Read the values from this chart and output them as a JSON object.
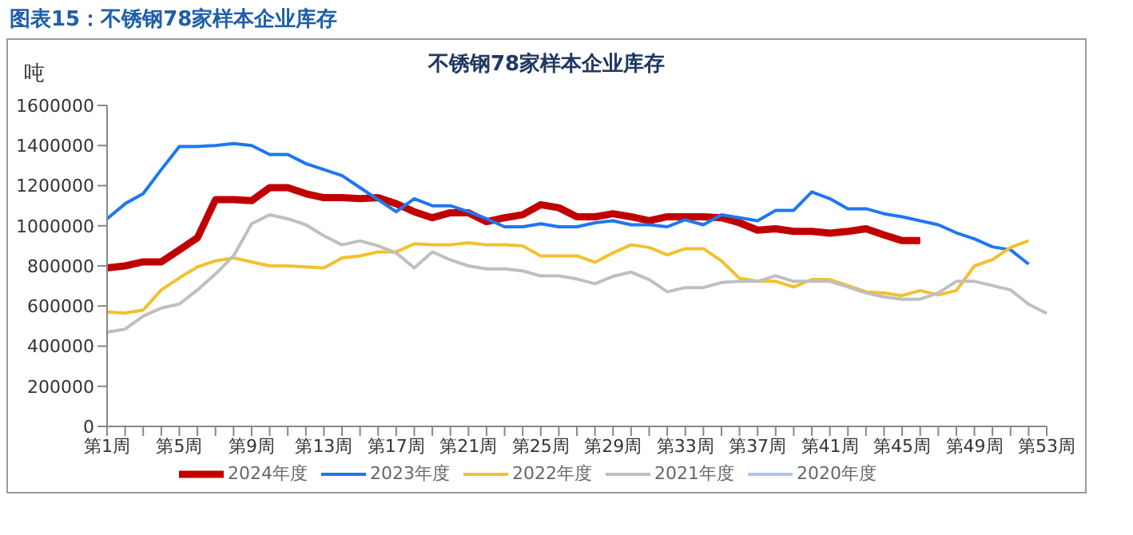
{
  "chart_data": {
    "type": "line",
    "title": "图表15：不锈钢78家样本企业库存",
    "subtitle": "不锈钢78家样本企业库存",
    "ylabel": "吨",
    "categories": [
      "第1周",
      null,
      null,
      null,
      "第5周",
      null,
      null,
      null,
      "第9周",
      null,
      null,
      null,
      "第13周",
      null,
      null,
      null,
      "第17周",
      null,
      null,
      null,
      "第21周",
      null,
      null,
      null,
      "第25周",
      null,
      null,
      null,
      "第29周",
      null,
      null,
      null,
      "第33周",
      null,
      null,
      null,
      "第37周",
      null,
      null,
      null,
      "第41周",
      null,
      null,
      null,
      "第45周",
      null,
      null,
      null,
      "第49周",
      null,
      null,
      null,
      "第53周"
    ],
    "series": [
      {
        "name": "2024年度",
        "color": "#c00000",
        "values": [
          790000,
          800000,
          820000,
          820000,
          880000,
          940000,
          1130000,
          1130000,
          1125000,
          1190000,
          1190000,
          1160000,
          1140000,
          1140000,
          1135000,
          1140000,
          1110000,
          1070000,
          1040000,
          1065000,
          1065000,
          1020000,
          1040000,
          1055000,
          1105000,
          1090000,
          1045000,
          1045000,
          1060000,
          1045000,
          1025000,
          1045000,
          1045000,
          1045000,
          1040000,
          1015000,
          978000,
          985000,
          972000,
          972000,
          963000,
          972000,
          985000,
          954000,
          926000,
          926000,
          null,
          null,
          null,
          null,
          null,
          null,
          null
        ]
      },
      {
        "name": "2023年度",
        "color": "#1f77f0",
        "values": [
          1035000,
          1110000,
          1160000,
          1280000,
          1395000,
          1395000,
          1400000,
          1410000,
          1400000,
          1355000,
          1355000,
          1310000,
          1280000,
          1250000,
          1190000,
          1130000,
          1070000,
          1135000,
          1100000,
          1100000,
          1070000,
          1035000,
          995000,
          995000,
          1010000,
          995000,
          995000,
          1015000,
          1025000,
          1005000,
          1005000,
          995000,
          1030000,
          1005000,
          1055000,
          1040000,
          1025000,
          1077000,
          1077000,
          1169000,
          1135000,
          1085000,
          1085000,
          1060000,
          1045000,
          1025000,
          1005000,
          965000,
          935000,
          895000,
          880000,
          809000,
          null
        ]
      },
      {
        "name": "2022年度",
        "color": "#f2c12e",
        "values": [
          570000,
          565000,
          580000,
          680000,
          740000,
          795000,
          825000,
          840000,
          820000,
          800000,
          800000,
          795000,
          790000,
          840000,
          850000,
          870000,
          870000,
          910000,
          905000,
          905000,
          915000,
          905000,
          905000,
          900000,
          850000,
          850000,
          850000,
          818000,
          865000,
          905000,
          892000,
          855000,
          886000,
          886000,
          825000,
          738000,
          723000,
          723000,
          695000,
          732000,
          732000,
          702000,
          671000,
          665000,
          652000,
          677000,
          655000,
          677000,
          800000,
          831000,
          892000,
          926000,
          null
        ]
      },
      {
        "name": "2021年度",
        "color": "#bfbfbf",
        "values": [
          470000,
          485000,
          550000,
          590000,
          610000,
          680000,
          760000,
          850000,
          1010000,
          1055000,
          1035000,
          1005000,
          950000,
          905000,
          925000,
          900000,
          865000,
          790000,
          870000,
          830000,
          800000,
          785000,
          785000,
          775000,
          750000,
          750000,
          735000,
          711000,
          748000,
          769000,
          732000,
          671000,
          692000,
          692000,
          717000,
          723000,
          723000,
          751000,
          723000,
          723000,
          723000,
          695000,
          665000,
          646000,
          634000,
          634000,
          665000,
          723000,
          723000,
          702000,
          680000,
          609000,
          563000
        ]
      },
      {
        "name": "2020年度",
        "color": "#b4c7e7",
        "values": [
          null,
          null,
          null,
          null,
          null,
          null,
          null,
          null,
          null,
          null,
          null,
          null,
          null,
          null,
          null,
          null,
          null,
          null,
          null,
          null,
          null,
          null,
          null,
          null,
          null,
          null,
          null,
          null,
          null,
          null,
          null,
          null,
          null,
          null,
          null,
          null,
          null,
          null,
          null,
          null,
          null,
          null,
          null,
          null,
          null,
          null,
          null,
          null,
          null,
          null,
          null,
          null,
          null
        ]
      }
    ],
    "ylim": [
      0,
      1600000
    ],
    "yticks": [
      0,
      200000,
      400000,
      600000,
      800000,
      1000000,
      1200000,
      1400000,
      1600000
    ],
    "grid": false,
    "legend": "bottom",
    "marker": "none",
    "line_style": "solid"
  }
}
